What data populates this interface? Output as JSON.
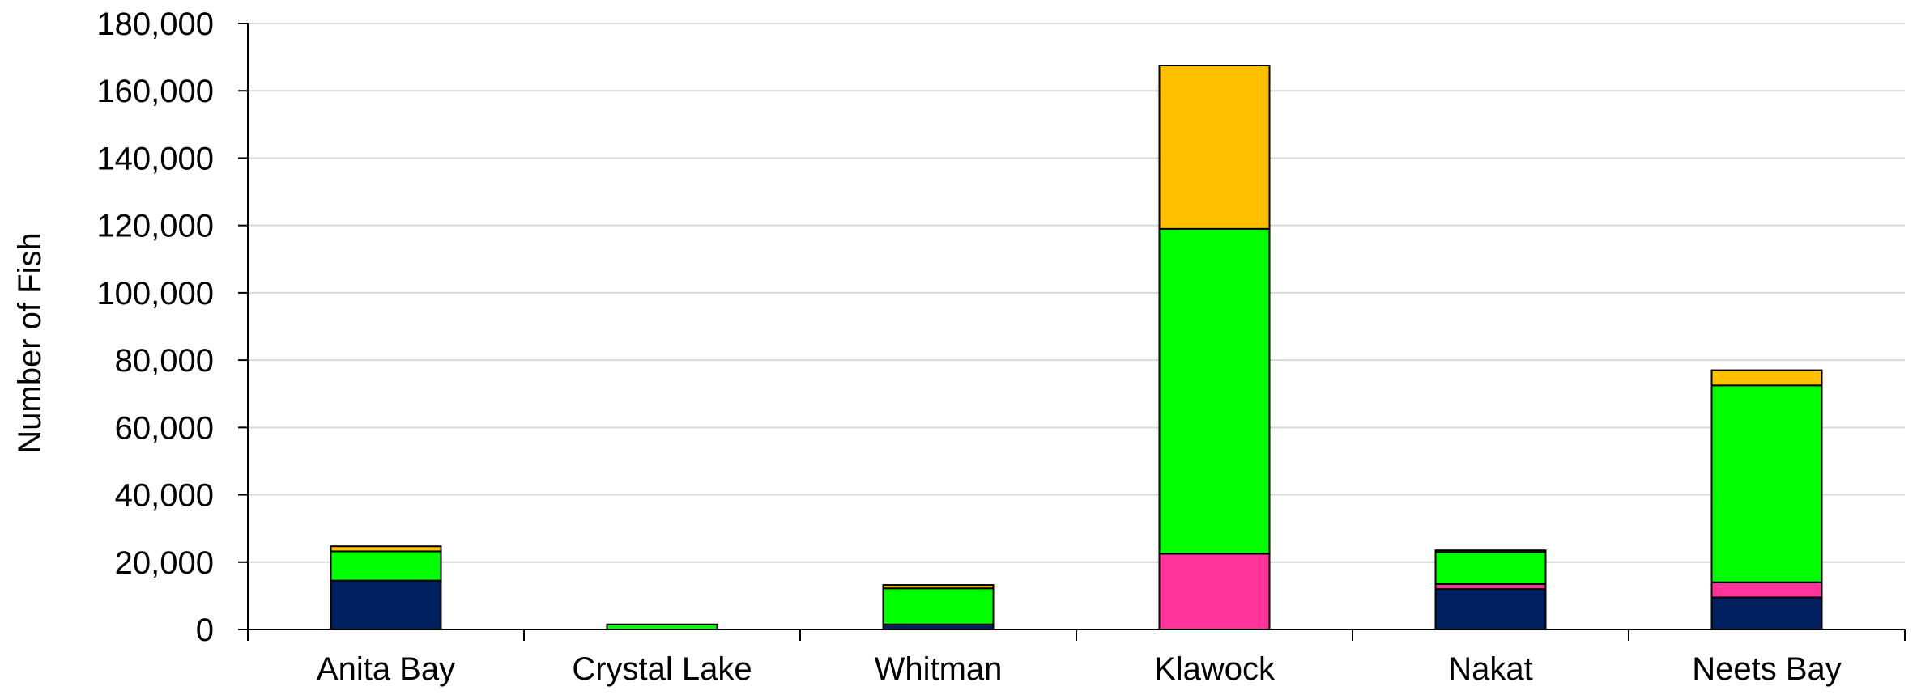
{
  "chart_data": {
    "type": "bar",
    "stacked": true,
    "title": "",
    "xlabel": "",
    "ylabel": "Number of Fish",
    "ylim": [
      0,
      180000
    ],
    "yticks": [
      "0",
      "20,000",
      "40,000",
      "60,000",
      "80,000",
      "100,000",
      "120,000",
      "140,000",
      "160,000",
      "180,000"
    ],
    "categories": [
      "Anita Bay",
      "Crystal Lake",
      "Whitman",
      "Klawock",
      "Nakat",
      "Neets Bay"
    ],
    "grid": true,
    "legend": "none",
    "series": [
      {
        "color": "#002060",
        "values": [
          14500,
          0,
          1500,
          0,
          12000,
          9500
        ]
      },
      {
        "color": "#FF3399",
        "values": [
          0,
          0,
          0,
          22500,
          1500,
          4500
        ]
      },
      {
        "color": "#00FF00",
        "values": [
          8700,
          1500,
          10700,
          96500,
          9500,
          58500
        ]
      },
      {
        "color": "#FFC000",
        "values": [
          1500,
          0,
          1000,
          48500,
          500,
          4500
        ]
      }
    ]
  }
}
